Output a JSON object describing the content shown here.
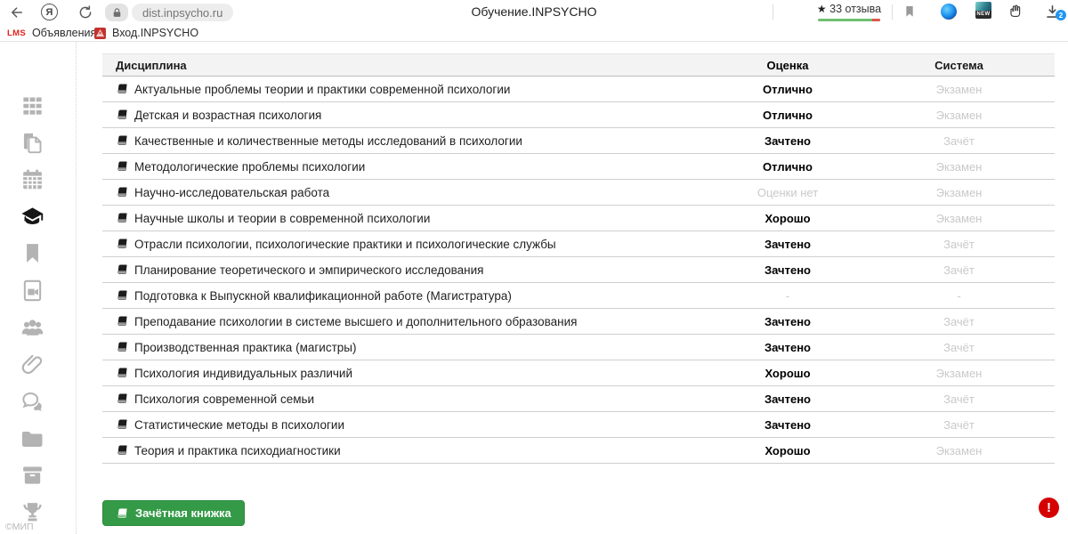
{
  "browser": {
    "url": "dist.inpsycho.ru",
    "tab_title": "Обучение.INPSYCHO",
    "yandex_letter": "Я",
    "reviews_star": "★",
    "reviews_label": "33 отзыва",
    "new_badge": "NEW",
    "downloads_count": "2"
  },
  "bookmarks_bar": {
    "items": [
      {
        "icon": "lms-logo",
        "logo_text": "LMS",
        "label": "Объявления"
      },
      {
        "icon": "inpsycho-favicon",
        "label": "Вход.INPSYCHO"
      }
    ]
  },
  "sidebar": {
    "items": [
      {
        "icon": "apps-grid-icon",
        "active": false
      },
      {
        "icon": "documents-icon",
        "active": false
      },
      {
        "icon": "calendar-icon",
        "active": false
      },
      {
        "icon": "graduation-cap-icon",
        "active": true
      },
      {
        "icon": "bookmark-icon",
        "active": false
      },
      {
        "icon": "video-lessons-icon",
        "active": false
      },
      {
        "icon": "users-icon",
        "active": false
      },
      {
        "icon": "paperclip-icon",
        "active": false
      },
      {
        "icon": "messages-icon",
        "active": false
      },
      {
        "icon": "folder-icon",
        "active": false
      },
      {
        "icon": "archive-icon",
        "active": false
      },
      {
        "icon": "trophy-icon",
        "active": false
      },
      {
        "icon": "card-icon",
        "active": false
      }
    ],
    "copyright": "©МИП"
  },
  "gradebook": {
    "headers": {
      "discipline": "Дисциплина",
      "grade": "Оценка",
      "system": "Система"
    },
    "rows": [
      {
        "name": "Актуальные проблемы теории и практики современной психологии",
        "grade": "Отлично",
        "grade_muted": false,
        "system": "Экзамен"
      },
      {
        "name": "Детская и возрастная психология",
        "grade": "Отлично",
        "grade_muted": false,
        "system": "Экзамен"
      },
      {
        "name": "Качественные и количественные методы исследований в психологии",
        "grade": "Зачтено",
        "grade_muted": false,
        "system": "Зачёт"
      },
      {
        "name": "Методологические проблемы психологии",
        "grade": "Отлично",
        "grade_muted": false,
        "system": "Экзамен"
      },
      {
        "name": "Научно-исследовательская работа",
        "grade": "Оценки нет",
        "grade_muted": true,
        "system": "Экзамен"
      },
      {
        "name": "Научные школы и теории в современной психологии",
        "grade": "Хорошо",
        "grade_muted": false,
        "system": "Экзамен"
      },
      {
        "name": "Отрасли психологии, психологические практики и психологические службы",
        "grade": "Зачтено",
        "grade_muted": false,
        "system": "Зачёт"
      },
      {
        "name": "Планирование теоретического и эмпирического исследования",
        "grade": "Зачтено",
        "grade_muted": false,
        "system": "Зачёт"
      },
      {
        "name": "Подготовка к Выпускной квалификационной работе (Магистратура)",
        "grade": "-",
        "grade_muted": true,
        "system": "-"
      },
      {
        "name": "Преподавание психологии в системе высшего и дополнительного образования",
        "grade": "Зачтено",
        "grade_muted": false,
        "system": "Зачёт"
      },
      {
        "name": "Производственная практика (магистры)",
        "grade": "Зачтено",
        "grade_muted": false,
        "system": "Зачёт"
      },
      {
        "name": "Психология индивидуальных различий",
        "grade": "Хорошо",
        "grade_muted": false,
        "system": "Экзамен"
      },
      {
        "name": "Психология современной семьи",
        "grade": "Зачтено",
        "grade_muted": false,
        "system": "Зачёт"
      },
      {
        "name": "Статистические методы в психологии",
        "grade": "Зачтено",
        "grade_muted": false,
        "system": "Зачёт"
      },
      {
        "name": "Теория и практика психодиагностики",
        "grade": "Хорошо",
        "grade_muted": false,
        "system": "Экзамен"
      }
    ],
    "button_label": "Зачётная книжка",
    "alert_glyph": "!"
  },
  "colors": {
    "accent_green": "#349a47",
    "alert_red": "#d50000",
    "brand_red": "#c4322e",
    "lms_red": "#e0231d",
    "badge_blue": "#2196f3"
  }
}
